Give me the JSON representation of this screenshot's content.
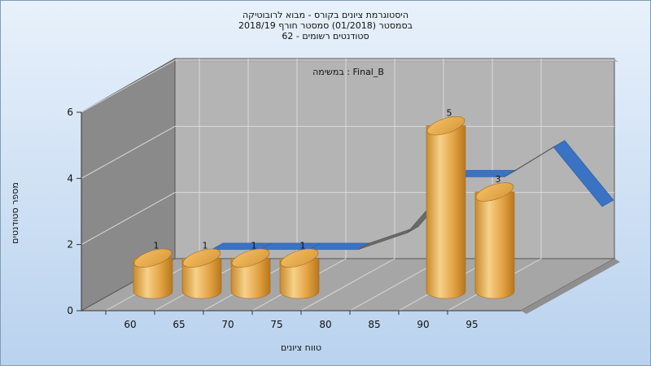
{
  "chart_data": {
    "type": "bar",
    "title_lines": [
      "היסטוגרמת ציונים בקורס - מבוא לרובוטיקה",
      "בסמסטר  (01/2018)  סמסטר חורף 2018/19",
      "סטודנטים רשומים - 62"
    ],
    "annotation": "במשימה : Final_B",
    "xlabel": "טווח ציונים",
    "ylabel": "מספר סטודנטים",
    "x_ticks": [
      "60",
      "65",
      "70",
      "75",
      "80",
      "85",
      "90",
      "95"
    ],
    "y_ticks": [
      "0",
      "2",
      "4",
      "6"
    ],
    "ylim": [
      0,
      6
    ],
    "grid": true,
    "bars": [
      {
        "x": 60,
        "value": 1
      },
      {
        "x": 65,
        "value": 1
      },
      {
        "x": 70,
        "value": 1
      },
      {
        "x": 75,
        "value": 1
      },
      {
        "x": 90,
        "value": 5
      },
      {
        "x": 95,
        "value": 3
      }
    ],
    "curve": [
      {
        "x": 62.5,
        "value": 1.7
      },
      {
        "x": 67.5,
        "value": 1.7
      },
      {
        "x": 72.5,
        "value": 1.7
      },
      {
        "x": 77.5,
        "value": 1.7
      },
      {
        "x": 82.5,
        "value": 2.2
      },
      {
        "x": 87.5,
        "value": 3.9
      },
      {
        "x": 92.5,
        "value": 3.9
      },
      {
        "x": 97.5,
        "value": 4.8
      },
      {
        "x": 102.5,
        "value": 3.0
      }
    ],
    "colors": {
      "bar_light": "#F6D189",
      "bar_mid": "#E3A244",
      "bar_dark": "#B8771D",
      "curve_front": "#3A72C4",
      "curve_back": "#6A6A6A",
      "back_wall": "#B4B4B4",
      "side_wall": "#8A8A8A",
      "floor": "#A6A6A6",
      "bg_top": "#E8F1FB",
      "bg_bottom": "#B9D2EE"
    }
  }
}
